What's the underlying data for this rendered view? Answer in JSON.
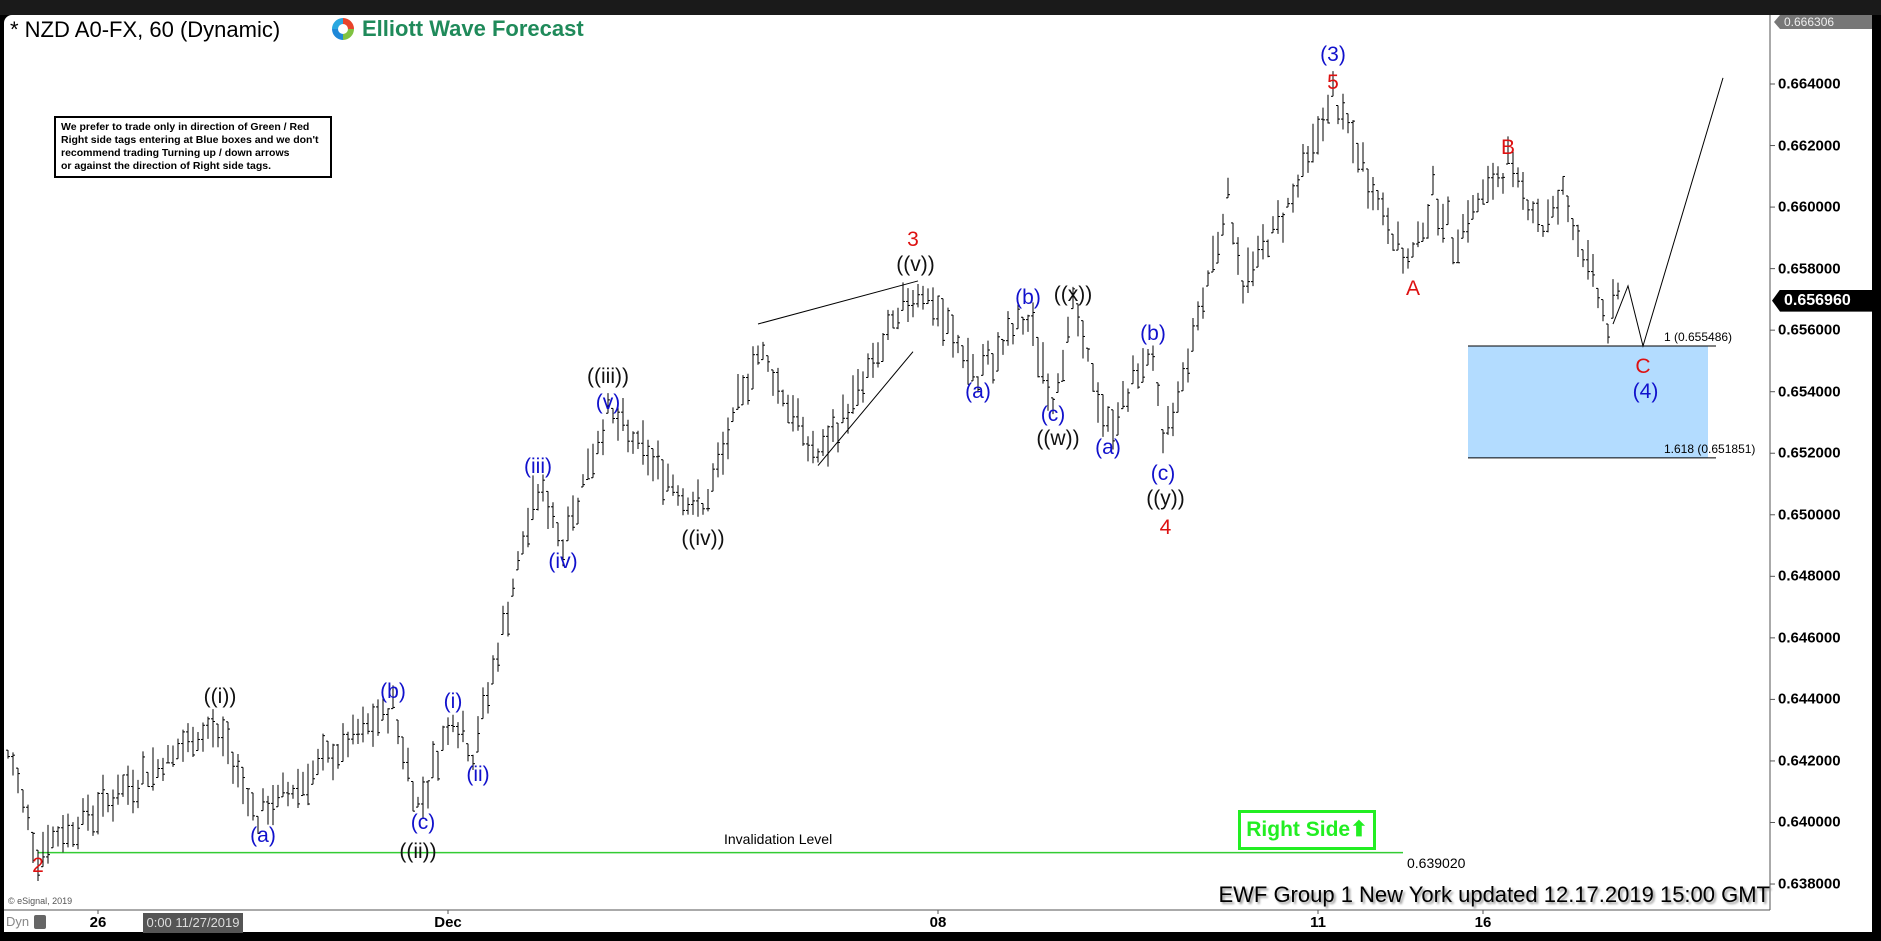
{
  "header": {
    "title": "* NZD A0-FX, 60 (Dynamic)",
    "logo_text": "Elliott Wave Forecast"
  },
  "note": {
    "lines": [
      "We prefer to trade only in direction of Green / Red",
      "Right side tags entering at Blue boxes and we don't",
      "recommend trading Turning up / down arrows",
      "or against the direction of Right side tags."
    ]
  },
  "footer": {
    "updated": "EWF Group 1 New York updated 12.17.2019 15:00 GMT",
    "copyright": "© eSignal, 2019",
    "dyn": "Dyn",
    "cursor_date": "0:00 11/27/2019"
  },
  "right_side": {
    "label": "Right Side",
    "arrow": "⬆",
    "color": "#22ee22"
  },
  "colors": {
    "red": "#dd1111",
    "blue": "#1111cc",
    "black": "#111111",
    "box": "#b3dcff",
    "invalidation": "#33cc33"
  },
  "chart_data": {
    "type": "ohlc-bar",
    "symbol": "NZD A0-FX",
    "interval": "60",
    "ylim": [
      0.638,
      0.666306
    ],
    "top_value": "0.666306",
    "current_price": "0.656960",
    "y_ticks": [
      "0.664000",
      "0.662000",
      "0.660000",
      "0.658000",
      "0.656000",
      "0.654000",
      "0.652000",
      "0.650000",
      "0.648000",
      "0.646000",
      "0.644000",
      "0.642000",
      "0.640000",
      "0.638000"
    ],
    "x_ticks": [
      {
        "label": "26",
        "bar": 18
      },
      {
        "label": "Dec",
        "bar": 88
      },
      {
        "label": "08",
        "bar": 186
      },
      {
        "label": "11",
        "bar": 262
      },
      {
        "label": "16",
        "bar": 295
      }
    ],
    "price_pivots": [
      [
        0,
        0.64235
      ],
      [
        6,
        0.6391
      ],
      [
        42,
        0.6432
      ],
      [
        50,
        0.6402
      ],
      [
        77,
        0.6437
      ],
      [
        82,
        0.6405
      ],
      [
        89,
        0.6435
      ],
      [
        93,
        0.6422
      ],
      [
        106,
        0.651
      ],
      [
        111,
        0.6492
      ],
      [
        120,
        0.6533
      ],
      [
        139,
        0.65
      ],
      [
        150,
        0.6555
      ],
      [
        162,
        0.6517
      ],
      [
        182,
        0.6575
      ],
      [
        194,
        0.6545
      ],
      [
        204,
        0.6565
      ],
      [
        209,
        0.6538
      ],
      [
        213,
        0.6567
      ],
      [
        220,
        0.6527
      ],
      [
        229,
        0.6555
      ],
      [
        231,
        0.652
      ],
      [
        244,
        0.6603
      ],
      [
        247,
        0.6576
      ],
      [
        256,
        0.66
      ],
      [
        265,
        0.6636
      ],
      [
        268,
        0.6624
      ],
      [
        280,
        0.658
      ],
      [
        285,
        0.6604
      ],
      [
        289,
        0.659
      ],
      [
        300,
        0.6614
      ],
      [
        307,
        0.6594
      ],
      [
        311,
        0.6604
      ],
      [
        320,
        0.6562
      ],
      [
        322,
        0.657
      ]
    ],
    "projection": [
      [
        321,
        0.6562
      ],
      [
        324,
        0.65744
      ],
      [
        327,
        0.655486
      ],
      [
        343,
        0.6642
      ]
    ],
    "wedge_lines": [
      [
        [
          150,
          0.6562
        ],
        [
          182,
          0.6576
        ]
      ],
      [
        [
          162,
          0.6516
        ],
        [
          181,
          0.6553
        ]
      ]
    ],
    "blue_box": {
      "from_bar": 292,
      "to_bar": 340,
      "top": 0.655486,
      "bottom": 0.651851,
      "top_label": "1 (0.655486)",
      "bottom_label": "1.618 (0.651851)"
    },
    "invalidation": {
      "value": 0.63902,
      "label": "Invalidation Level",
      "value_label": "0.639020",
      "from_bar": 6,
      "to_bar": 279
    },
    "wave_labels": [
      {
        "text": "2",
        "color": "red",
        "bar": 6,
        "price": 0.63859
      },
      {
        "text": "((i))",
        "color": "black",
        "bar": 42.4,
        "price": 0.64408
      },
      {
        "text": "(a)",
        "color": "blue",
        "bar": 51,
        "price": 0.63956
      },
      {
        "text": "(b)",
        "color": "blue",
        "bar": 77,
        "price": 0.64424
      },
      {
        "text": "(c)",
        "color": "blue",
        "bar": 83,
        "price": 0.63998
      },
      {
        "text": "((ii))",
        "color": "black",
        "bar": 82,
        "price": 0.63904
      },
      {
        "text": "(i)",
        "color": "blue",
        "bar": 89,
        "price": 0.64392
      },
      {
        "text": "(ii)",
        "color": "blue",
        "bar": 94,
        "price": 0.64154
      },
      {
        "text": "(iii)",
        "color": "blue",
        "bar": 106,
        "price": 0.65155
      },
      {
        "text": "(iv)",
        "color": "blue",
        "bar": 111,
        "price": 0.64847
      },
      {
        "text": "((iii))",
        "color": "black",
        "bar": 120,
        "price": 0.65448
      },
      {
        "text": "(v)",
        "color": "blue",
        "bar": 120,
        "price": 0.65363
      },
      {
        "text": "((iv))",
        "color": "black",
        "bar": 139,
        "price": 0.64921
      },
      {
        "text": "3",
        "color": "red",
        "bar": 181,
        "price": 0.65893
      },
      {
        "text": "((v))",
        "color": "black",
        "bar": 181.5,
        "price": 0.65812
      },
      {
        "text": "(a)",
        "color": "blue",
        "bar": 194,
        "price": 0.65399
      },
      {
        "text": "(b)",
        "color": "blue",
        "bar": 204,
        "price": 0.65705
      },
      {
        "text": "((x))",
        "color": "black",
        "bar": 213,
        "price": 0.65714
      },
      {
        "text": "(c)",
        "color": "blue",
        "bar": 209,
        "price": 0.65324
      },
      {
        "text": "((w))",
        "color": "black",
        "bar": 210,
        "price": 0.65246
      },
      {
        "text": "(a)",
        "color": "blue",
        "bar": 220,
        "price": 0.65217
      },
      {
        "text": "(b)",
        "color": "blue",
        "bar": 229,
        "price": 0.65588
      },
      {
        "text": "(c)",
        "color": "blue",
        "bar": 231,
        "price": 0.65132
      },
      {
        "text": "((y))",
        "color": "black",
        "bar": 231.5,
        "price": 0.65051
      },
      {
        "text": "4",
        "color": "red",
        "bar": 231.5,
        "price": 0.64957
      },
      {
        "text": "(3)",
        "color": "blue",
        "bar": 265,
        "price": 0.66494
      },
      {
        "text": "5",
        "color": "red",
        "bar": 265,
        "price": 0.66403
      },
      {
        "text": "A",
        "color": "red",
        "bar": 281,
        "price": 0.65734
      },
      {
        "text": "B",
        "color": "red",
        "bar": 300,
        "price": 0.66192
      },
      {
        "text": "C",
        "color": "red",
        "bar": 327,
        "price": 0.6548
      },
      {
        "text": "(4)",
        "color": "blue",
        "bar": 327.5,
        "price": 0.65399
      }
    ]
  }
}
